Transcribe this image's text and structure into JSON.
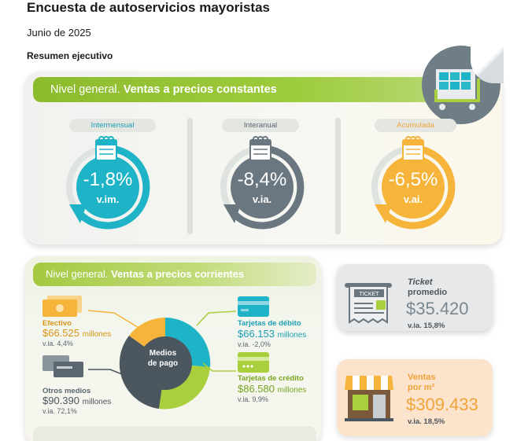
{
  "header": {
    "title": "Encuesta de autoservicios mayoristas",
    "date": "Junio de 2025",
    "section": "Resumen ejecutivo"
  },
  "constant_prices": {
    "banner_prefix": "Nivel general.",
    "banner_bold": "Ventas a precios constantes",
    "indicators": [
      {
        "label": "Intermensual",
        "value": "-1,8%",
        "unit": "v.im.",
        "color": "#1fb3c7",
        "label_color": "#1a9fb5"
      },
      {
        "label": "Interanual",
        "value": "-8,4%",
        "unit": "v.ia.",
        "color": "#6b7780",
        "label_color": "#5a6670"
      },
      {
        "label": "Acumulada",
        "value": "-6,5%",
        "unit": "v.ai.",
        "color": "#f6b43a",
        "label_color": "#f0a43a"
      }
    ]
  },
  "current_prices": {
    "banner_prefix": "Nivel general.",
    "banner_bold": "Ventas a precios corrientes",
    "donut_center": [
      "Medios",
      "de pago"
    ],
    "payment_methods": [
      {
        "label": "Efectivo",
        "amount": "$66.525",
        "unit": "millones",
        "via": "v.ia. 4,4%",
        "color": "#f6b43a"
      },
      {
        "label": "Tarjetas de débito",
        "amount": "$66.153",
        "unit": "millones",
        "via": "v.ia. -2,0%",
        "color": "#1fb3c7"
      },
      {
        "label": "Tarjetas de crédito",
        "amount": "$86.580",
        "unit": "millones",
        "via": "v.ia. 9,9%",
        "color": "#a9cf3c"
      },
      {
        "label": "Otros medios",
        "amount": "$90.390",
        "unit": "millones",
        "via": "v.ia. 72,1%",
        "color": "#4b565e"
      }
    ]
  },
  "ticket": {
    "title_italic": "Ticket",
    "title_rest": "promedio",
    "icon_text": "TICKET",
    "value": "$35.420",
    "via": "v.ia. 15,8%"
  },
  "sales_per_m2": {
    "title_line1": "Ventas",
    "title_line2": "por m²",
    "value": "$309.433",
    "via": "v.ia. 18,5%"
  }
}
